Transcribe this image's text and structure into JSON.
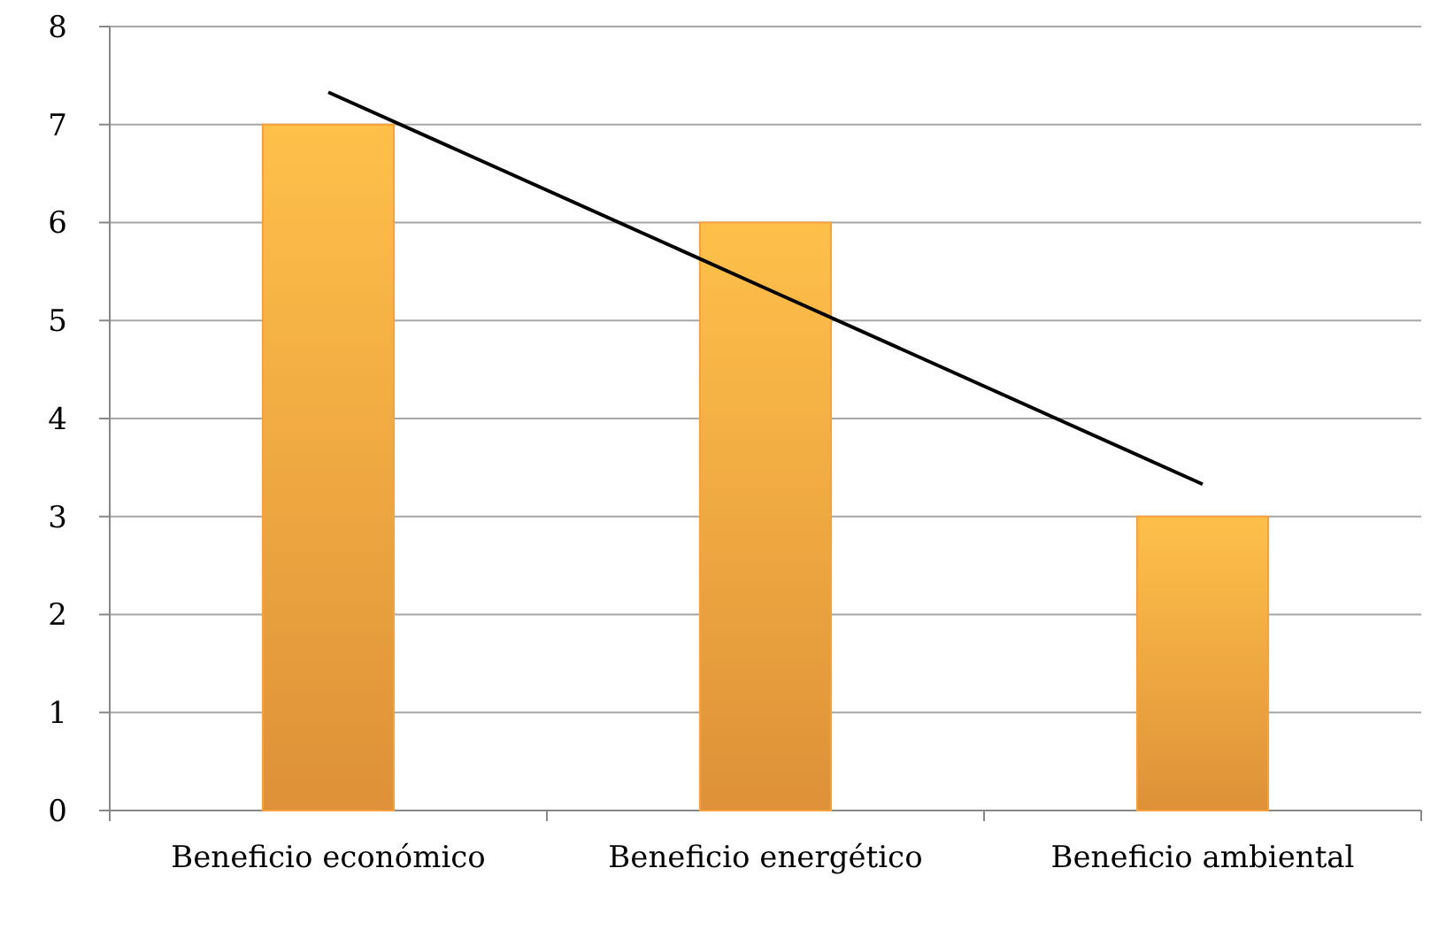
{
  "chart_data": {
    "type": "bar",
    "categories": [
      "Beneficio económico",
      "Beneficio energético",
      "Beneficio ambiental"
    ],
    "series": [
      {
        "color": "#f7a13e",
        "values": [
          7,
          6,
          3
        ]
      },
      {
        "type": "line",
        "color": "#000000",
        "values": [
          7.33,
          5.33,
          3.33
        ]
      }
    ],
    "ylim": [
      0,
      8
    ],
    "yticks": [
      0,
      1,
      2,
      3,
      4,
      5,
      6,
      7,
      8
    ],
    "grid": "y"
  }
}
